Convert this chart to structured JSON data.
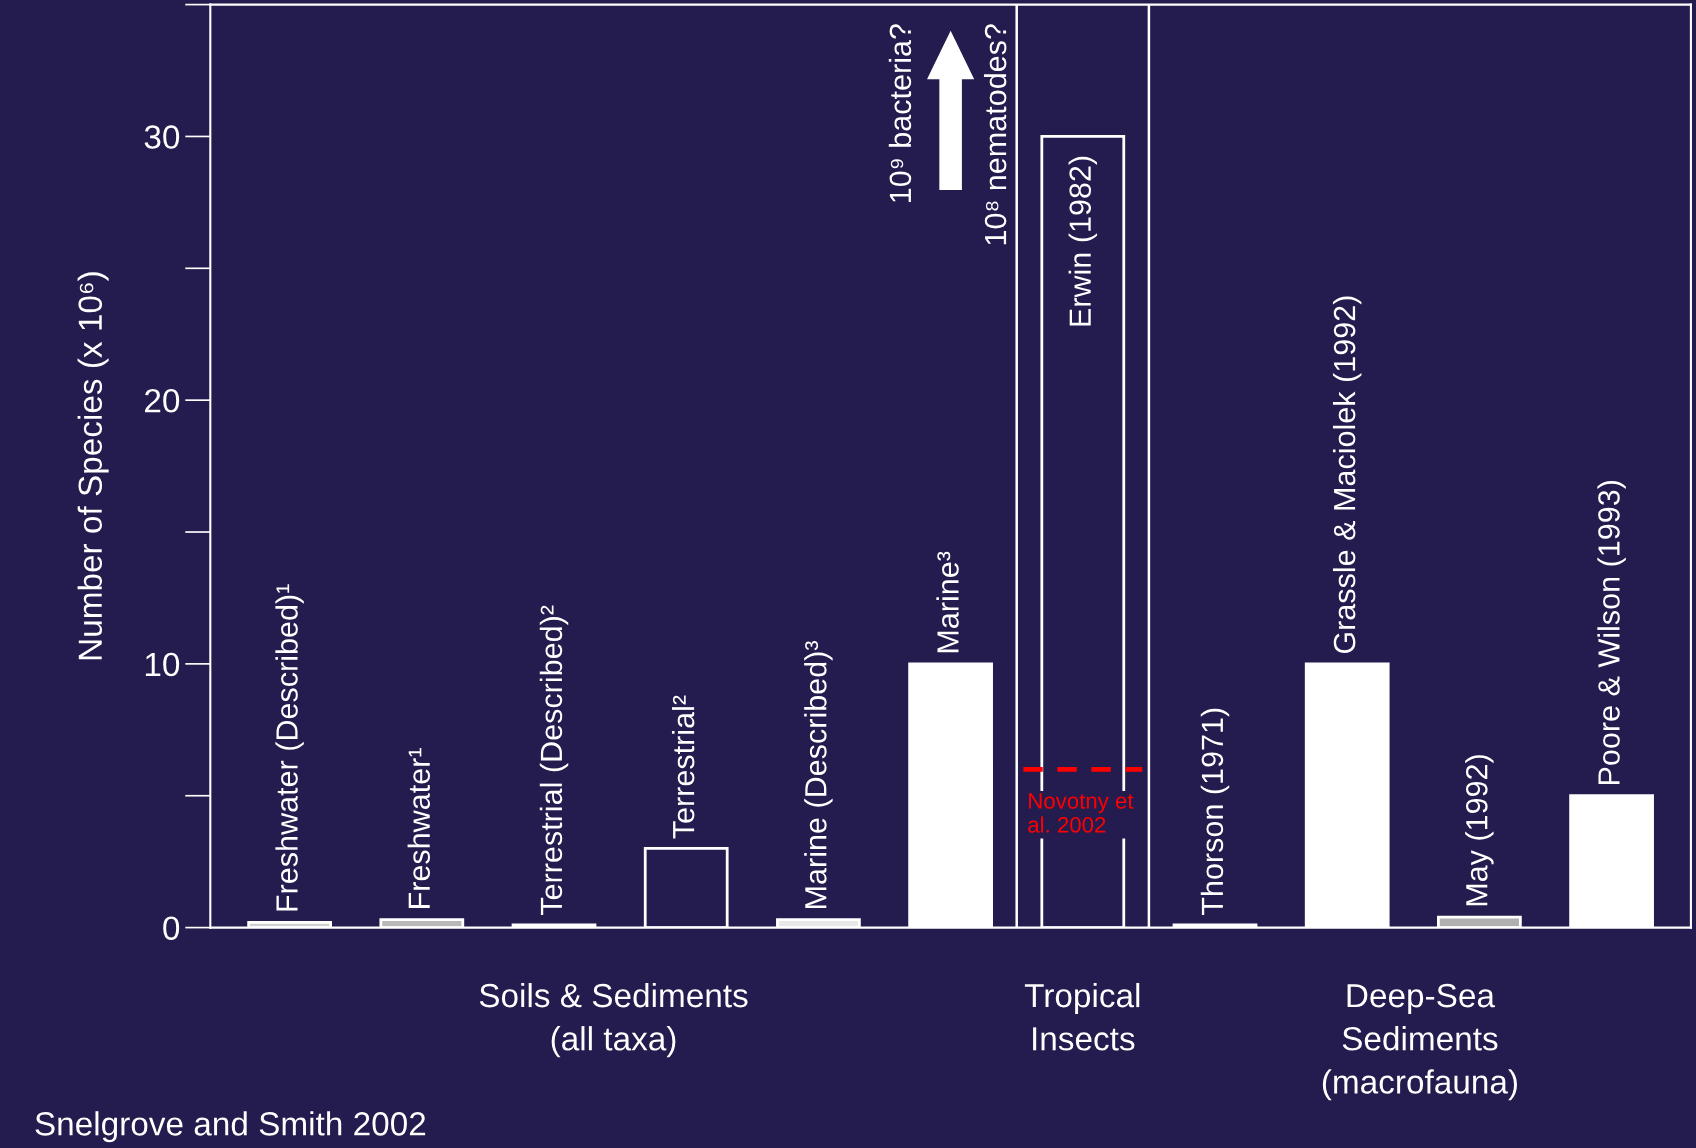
{
  "chart_data": {
    "type": "bar",
    "ylabel": "Number of Species (x 10⁶)",
    "categories": [
      "Freshwater (Described)¹",
      "Freshwater¹",
      "Terrestrial (Described)²",
      "Terrestrial²",
      "Marine (Described)³",
      "Marine³",
      "Erwin (1982)",
      "Thorson (1971)",
      "Grassle & Maciolek (1992)",
      "May (1992)",
      "Poore & Wilson (1993)"
    ],
    "values": [
      0.2,
      0.3,
      0.1,
      3,
      0.3,
      10,
      30,
      0.1,
      10,
      0.4,
      5
    ],
    "colors": [
      "#d0d0d0",
      "#b8b8b8",
      "#e0e0e0",
      "#241c4e",
      "#e8e8e8",
      "#ffffff",
      "#241c4e",
      "#e0e0e0",
      "#ffffff",
      "#b0b0b0",
      "#ffffff"
    ],
    "ylim": [
      0,
      35
    ],
    "yticks": [
      0,
      10,
      20,
      30
    ],
    "ref_lines": [
      {
        "axis": "y",
        "value": 6,
        "label": "Novotny et al. 2002",
        "color": "#ff0000",
        "line_style": "dashed"
      }
    ],
    "annotations": [
      "Soils & Sediments\n(all taxa)",
      "Tropical\nInsects",
      "Deep-Sea\nSediments\n(macrofauna)",
      "10⁹ bacteria?",
      "10⁸ nematodes?",
      "Snelgrove and Smith 2002"
    ],
    "grid": false
  }
}
